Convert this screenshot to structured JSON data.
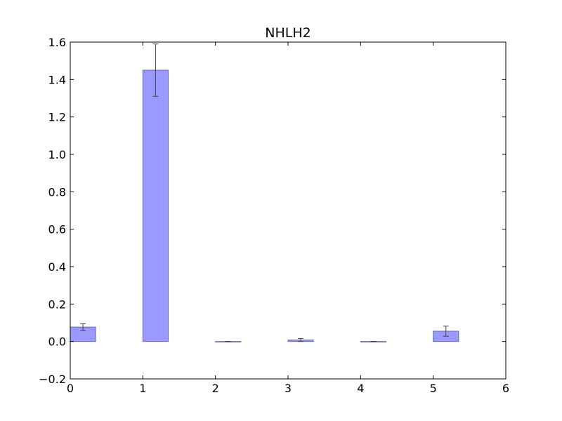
{
  "chart_data": {
    "type": "bar",
    "title": "NHLH2",
    "xlabel": "",
    "ylabel": "",
    "xlim": [
      0,
      6
    ],
    "ylim": [
      -0.2,
      1.6
    ],
    "x_ticks": [
      "0",
      "1",
      "2",
      "3",
      "4",
      "5",
      "6"
    ],
    "y_ticks": [
      "−0.2",
      "0.0",
      "0.2",
      "0.4",
      "0.6",
      "0.8",
      "1.0",
      "1.2",
      "1.4",
      "1.6"
    ],
    "bars": [
      {
        "x": 0,
        "value": 0.077,
        "error": 0.018
      },
      {
        "x": 1,
        "value": 1.45,
        "error": 0.14
      },
      {
        "x": 2,
        "value": 0.0,
        "error": 0.0
      },
      {
        "x": 3,
        "value": 0.008,
        "error": 0.008
      },
      {
        "x": 4,
        "value": 0.0,
        "error": 0.0
      },
      {
        "x": 5,
        "value": 0.055,
        "error": 0.027
      }
    ],
    "bar_width": 0.35,
    "bar_color": "#9999ff",
    "bar_edge_color": "#6a6aa8",
    "error_color": "#444444",
    "grid": false
  }
}
